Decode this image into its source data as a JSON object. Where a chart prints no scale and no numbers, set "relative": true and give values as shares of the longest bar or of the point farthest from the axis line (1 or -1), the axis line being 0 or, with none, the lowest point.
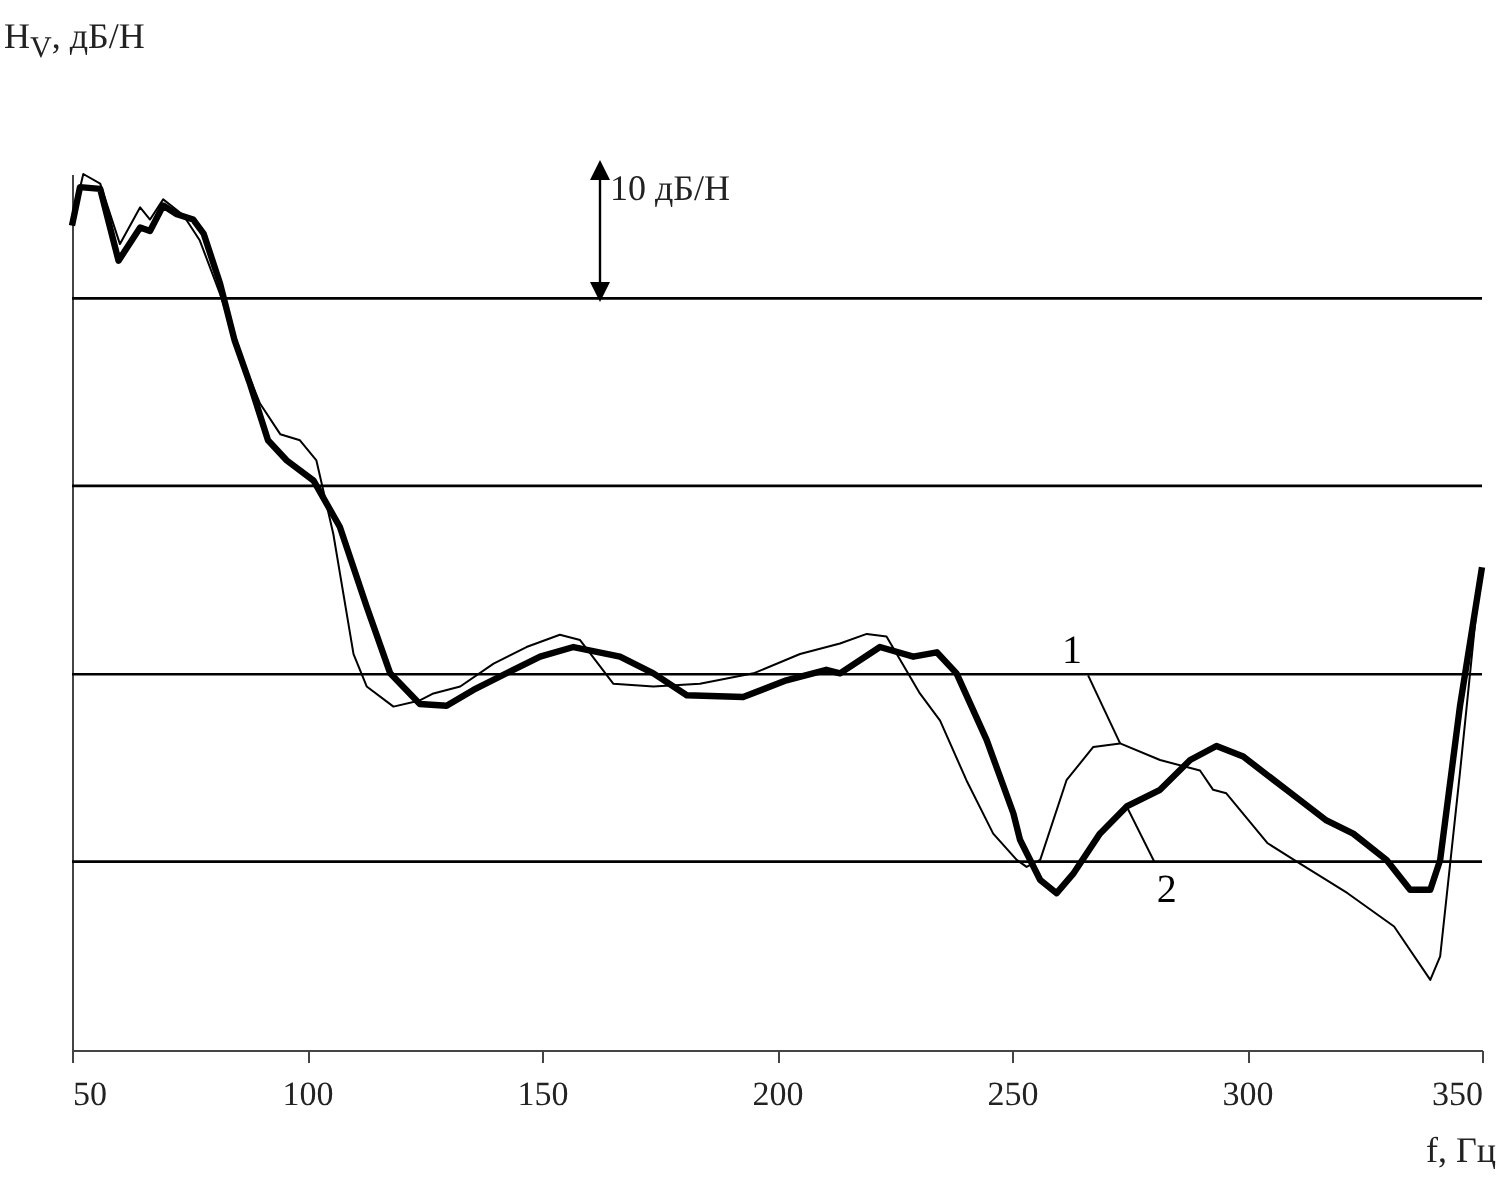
{
  "chart_data": {
    "type": "line",
    "relative": true,
    "xlabel": "f, Гц",
    "ylabel": "H$_{V}$, дБ/Н",
    "annotations": [
      "10 дБ/Н"
    ],
    "xlim": [
      50,
      350
    ],
    "xticks": [
      50,
      100,
      150,
      200,
      250,
      300,
      350
    ],
    "ref_lines": [
      {
        "axis": "y",
        "value": 0.215,
        "color": "#000000"
      },
      {
        "axis": "y",
        "value": 0.429,
        "color": "#000000"
      },
      {
        "axis": "y",
        "value": 0.644,
        "color": "#000000"
      },
      {
        "axis": "y",
        "value": 0.858,
        "color": "#000000"
      }
    ],
    "series": [
      {
        "name": "1",
        "color": "#000000",
        "x": [
          50,
          52.4,
          56,
          60.2,
          64.5,
          66.6,
          69.4,
          73.7,
          77.2,
          81.5,
          85.7,
          90,
          94.3,
          98.5,
          102,
          105.6,
          109.9,
          112.7,
          118.4,
          124,
          126.9,
          132.6,
          139.7,
          146.7,
          153.8,
          158.1,
          165.2,
          173.7,
          183.6,
          195,
          204.9,
          213.4,
          219.1,
          223.3,
          230.4,
          234.7,
          240.3,
          246,
          251,
          253.1,
          256,
          261.6,
          267.3,
          273,
          281.5,
          290,
          292.8,
          295.6,
          304.4,
          310,
          321.4,
          331.3,
          339,
          341.1,
          345.3,
          348.9
        ],
        "values": [
          0.945,
          1.0,
          0.989,
          0.92,
          0.962,
          0.948,
          0.971,
          0.953,
          0.924,
          0.863,
          0.795,
          0.738,
          0.703,
          0.696,
          0.673,
          0.589,
          0.452,
          0.415,
          0.392,
          0.399,
          0.407,
          0.415,
          0.441,
          0.46,
          0.474,
          0.468,
          0.418,
          0.415,
          0.418,
          0.43,
          0.452,
          0.464,
          0.475,
          0.472,
          0.407,
          0.376,
          0.308,
          0.247,
          0.217,
          0.209,
          0.217,
          0.308,
          0.346,
          0.35,
          0.331,
          0.319,
          0.297,
          0.293,
          0.236,
          0.217,
          0.179,
          0.141,
          0.08,
          0.107,
          0.316,
          0.506
        ]
      },
      {
        "name": "2",
        "color": "#000000",
        "x": [
          50,
          51.7,
          56,
          59.9,
          64.5,
          66.6,
          69.4,
          72.3,
          75.8,
          78,
          81.5,
          84.6,
          87.9,
          91.7,
          95.7,
          101.4,
          107,
          112.7,
          117.7,
          124,
          129.7,
          135.4,
          143.9,
          149.6,
          156.7,
          166.6,
          173.7,
          180.8,
          192.8,
          202,
          210.5,
          213.4,
          221.9,
          229,
          234,
          238.2,
          244.6,
          250.3,
          251.7,
          256,
          259.5,
          263,
          268.7,
          274.4,
          281.5,
          287.9,
          293.5,
          299.2,
          308.4,
          316.9,
          322.6,
          329.7,
          334.7,
          339,
          341.1,
          345.3,
          350
        ],
        "values": [
          0.941,
          0.985,
          0.983,
          0.901,
          0.939,
          0.935,
          0.964,
          0.954,
          0.948,
          0.932,
          0.875,
          0.81,
          0.76,
          0.696,
          0.673,
          0.65,
          0.597,
          0.506,
          0.43,
          0.395,
          0.393,
          0.411,
          0.434,
          0.449,
          0.46,
          0.449,
          0.43,
          0.405,
          0.403,
          0.422,
          0.434,
          0.43,
          0.46,
          0.449,
          0.454,
          0.43,
          0.354,
          0.27,
          0.24,
          0.194,
          0.179,
          0.201,
          0.247,
          0.278,
          0.297,
          0.331,
          0.347,
          0.335,
          0.297,
          0.262,
          0.247,
          0.217,
          0.183,
          0.183,
          0.217,
          0.392,
          0.551
        ]
      }
    ]
  }
}
